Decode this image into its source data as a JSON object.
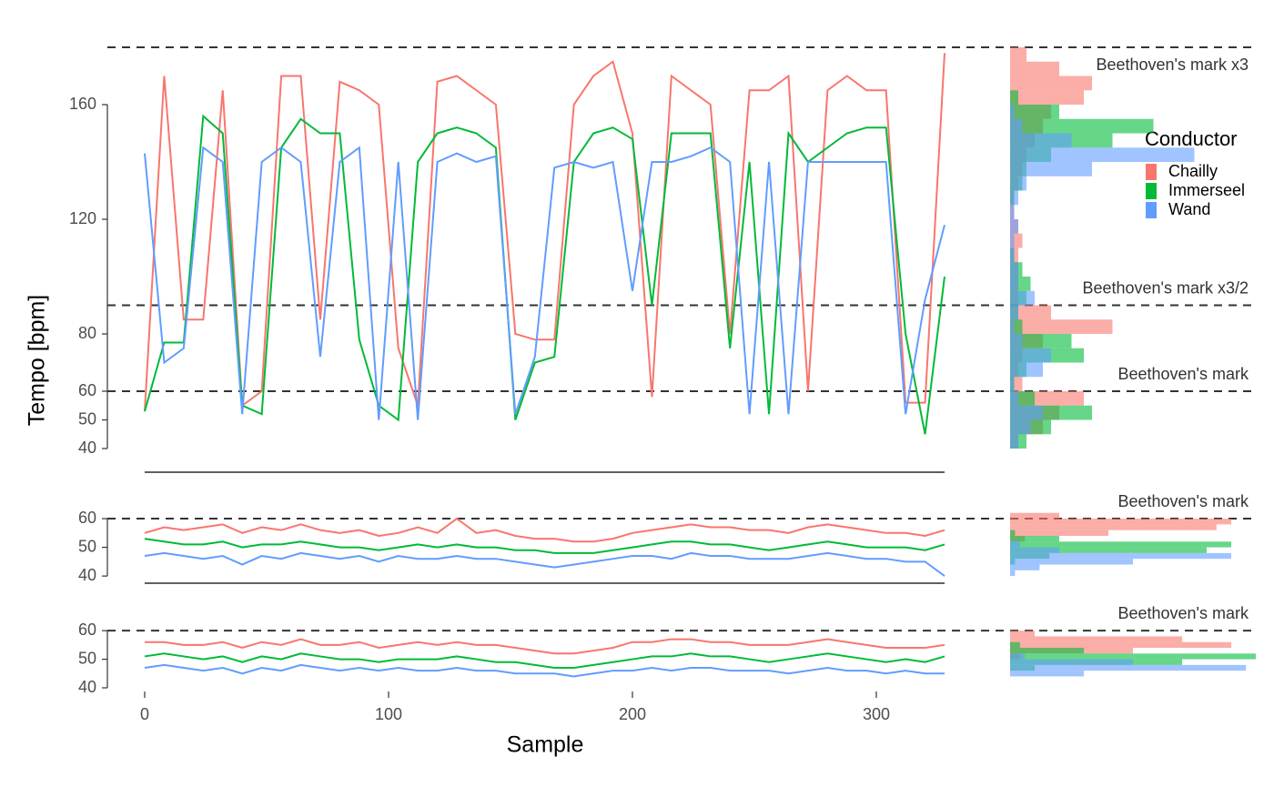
{
  "chart_data": [
    {
      "type": "line",
      "ylabel": "Tempo [bpm]",
      "legend_title": "Conductor",
      "legend": "right",
      "xlim": [
        0,
        328
      ],
      "ylim": [
        40,
        180
      ],
      "yticks": [
        40,
        50,
        60,
        80,
        120,
        160
      ],
      "ref_lines": [
        {
          "value": 180,
          "label": "Beethoven's mark x3"
        },
        {
          "value": 90,
          "label": "Beethoven's mark x3/2"
        },
        {
          "value": 60,
          "label": "Beethoven's mark"
        }
      ],
      "x": [
        0,
        8,
        16,
        24,
        32,
        40,
        48,
        56,
        64,
        72,
        80,
        88,
        96,
        104,
        112,
        120,
        128,
        136,
        144,
        152,
        160,
        168,
        176,
        184,
        192,
        200,
        208,
        216,
        224,
        232,
        240,
        248,
        256,
        264,
        272,
        280,
        288,
        296,
        304,
        312,
        320,
        328
      ],
      "series": [
        {
          "name": "Chailly",
          "color": "#F8766D",
          "values": [
            53,
            170,
            85,
            85,
            165,
            55,
            60,
            170,
            170,
            85,
            168,
            165,
            160,
            75,
            55,
            168,
            170,
            165,
            160,
            80,
            78,
            78,
            160,
            170,
            175,
            150,
            58,
            170,
            165,
            160,
            80,
            165,
            165,
            170,
            60,
            165,
            170,
            165,
            165,
            56,
            56,
            178
          ]
        },
        {
          "name": "Immerseel",
          "color": "#00BA38",
          "values": [
            53,
            77,
            77,
            156,
            150,
            55,
            52,
            145,
            155,
            150,
            150,
            78,
            55,
            50,
            140,
            150,
            152,
            150,
            145,
            50,
            70,
            72,
            140,
            150,
            152,
            148,
            90,
            150,
            150,
            150,
            75,
            140,
            52,
            150,
            140,
            145,
            150,
            152,
            152,
            80,
            45,
            100
          ]
        },
        {
          "name": "Wand",
          "color": "#619CFF",
          "values": [
            143,
            70,
            75,
            145,
            140,
            52,
            140,
            145,
            140,
            72,
            140,
            145,
            50,
            140,
            50,
            140,
            143,
            140,
            142,
            52,
            72,
            138,
            140,
            138,
            140,
            95,
            140,
            140,
            142,
            145,
            140,
            52,
            140,
            52,
            140,
            140,
            140,
            140,
            140,
            52,
            92,
            118
          ]
        }
      ]
    },
    {
      "type": "line",
      "xlim": [
        0,
        328
      ],
      "ylim": [
        37.5,
        63.5
      ],
      "yticks": [
        40,
        50,
        60
      ],
      "ref_lines": [
        {
          "value": 60,
          "label": "Beethoven's mark"
        }
      ],
      "x": [
        0,
        8,
        16,
        24,
        32,
        40,
        48,
        56,
        64,
        72,
        80,
        88,
        96,
        104,
        112,
        120,
        128,
        136,
        144,
        152,
        160,
        168,
        176,
        184,
        192,
        200,
        208,
        216,
        224,
        232,
        240,
        248,
        256,
        264,
        272,
        280,
        288,
        296,
        304,
        312,
        320,
        328
      ],
      "series": [
        {
          "name": "Chailly",
          "color": "#F8766D",
          "values": [
            55,
            57,
            56,
            57,
            58,
            55,
            57,
            56,
            58,
            56,
            55,
            56,
            54,
            55,
            57,
            55,
            60,
            55,
            56,
            54,
            53,
            53,
            52,
            52,
            53,
            55,
            56,
            57,
            58,
            57,
            57,
            56,
            56,
            55,
            57,
            58,
            57,
            56,
            55,
            55,
            54,
            56
          ]
        },
        {
          "name": "Immerseel",
          "color": "#00BA38",
          "values": [
            53,
            52,
            51,
            51,
            52,
            50,
            51,
            51,
            52,
            51,
            50,
            50,
            49,
            50,
            51,
            50,
            51,
            50,
            50,
            49,
            49,
            48,
            48,
            48,
            49,
            50,
            51,
            52,
            52,
            51,
            51,
            50,
            49,
            50,
            51,
            52,
            51,
            50,
            50,
            50,
            49,
            51
          ]
        },
        {
          "name": "Wand",
          "color": "#619CFF",
          "values": [
            47,
            48,
            47,
            46,
            47,
            44,
            47,
            46,
            48,
            47,
            46,
            47,
            45,
            47,
            46,
            46,
            47,
            46,
            46,
            45,
            44,
            43,
            44,
            45,
            46,
            47,
            47,
            46,
            48,
            47,
            47,
            46,
            46,
            46,
            47,
            48,
            47,
            46,
            46,
            45,
            45,
            40
          ]
        }
      ]
    },
    {
      "type": "line",
      "xlabel": "Sample",
      "xlim": [
        0,
        328
      ],
      "xticks": [
        0,
        100,
        200,
        300
      ],
      "ylim": [
        40,
        61
      ],
      "yticks": [
        40,
        50,
        60
      ],
      "ref_lines": [
        {
          "value": 60,
          "label": "Beethoven's mark"
        }
      ],
      "x": [
        0,
        8,
        16,
        24,
        32,
        40,
        48,
        56,
        64,
        72,
        80,
        88,
        96,
        104,
        112,
        120,
        128,
        136,
        144,
        152,
        160,
        168,
        176,
        184,
        192,
        200,
        208,
        216,
        224,
        232,
        240,
        248,
        256,
        264,
        272,
        280,
        288,
        296,
        304,
        312,
        320,
        328
      ],
      "series": [
        {
          "name": "Chailly",
          "color": "#F8766D",
          "values": [
            56,
            56,
            55,
            55,
            56,
            54,
            56,
            55,
            57,
            55,
            55,
            56,
            54,
            55,
            56,
            55,
            56,
            55,
            55,
            54,
            53,
            52,
            52,
            53,
            54,
            56,
            56,
            57,
            57,
            56,
            56,
            55,
            55,
            55,
            56,
            57,
            56,
            55,
            54,
            54,
            54,
            55
          ]
        },
        {
          "name": "Immerseel",
          "color": "#00BA38",
          "values": [
            51,
            52,
            51,
            50,
            51,
            49,
            51,
            50,
            52,
            51,
            50,
            50,
            49,
            50,
            50,
            50,
            51,
            50,
            49,
            49,
            48,
            47,
            47,
            48,
            49,
            50,
            51,
            51,
            52,
            51,
            51,
            50,
            49,
            50,
            51,
            52,
            51,
            50,
            49,
            50,
            49,
            51
          ]
        },
        {
          "name": "Wand",
          "color": "#619CFF",
          "values": [
            47,
            48,
            47,
            46,
            47,
            45,
            47,
            46,
            48,
            47,
            46,
            47,
            46,
            47,
            46,
            46,
            47,
            46,
            46,
            45,
            45,
            45,
            44,
            45,
            46,
            46,
            47,
            46,
            47,
            47,
            46,
            46,
            46,
            45,
            46,
            47,
            46,
            46,
            45,
            46,
            45,
            45
          ]
        }
      ]
    },
    {
      "type": "histogram",
      "xlim": [
        0,
        60
      ],
      "bins": [
        40,
        45,
        50,
        55,
        60,
        65,
        70,
        75,
        80,
        85,
        90,
        95,
        100,
        105,
        110,
        115,
        120,
        125,
        130,
        135,
        140,
        145,
        150,
        155,
        160,
        165,
        170,
        175,
        180
      ],
      "series": [
        {
          "name": "Chailly",
          "color": "#F8766D",
          "values": [
            2,
            8,
            12,
            18,
            3,
            2,
            3,
            8,
            25,
            10,
            2,
            2,
            2,
            2,
            3,
            2,
            1,
            1,
            2,
            3,
            4,
            6,
            8,
            10,
            18,
            20,
            12,
            4
          ]
        },
        {
          "name": "Immerseel",
          "color": "#00BA38",
          "values": [
            4,
            10,
            20,
            6,
            1,
            4,
            18,
            15,
            3,
            2,
            4,
            5,
            3,
            1,
            0,
            0,
            0,
            1,
            3,
            4,
            10,
            25,
            35,
            12,
            2,
            0,
            0,
            0
          ]
        },
        {
          "name": "Wand",
          "color": "#619CFF",
          "values": [
            2,
            5,
            8,
            2,
            1,
            8,
            10,
            3,
            1,
            2,
            6,
            2,
            2,
            1,
            1,
            2,
            1,
            2,
            4,
            20,
            45,
            15,
            3,
            1,
            0,
            0,
            0,
            0
          ]
        }
      ]
    },
    {
      "type": "histogram",
      "xlim": [
        0,
        50
      ],
      "bins": [
        40,
        42,
        44,
        46,
        48,
        50,
        52,
        54,
        56,
        58,
        60,
        62
      ],
      "series": [
        {
          "name": "Chailly",
          "color": "#F8766D",
          "values": [
            0,
            0,
            0,
            0,
            0,
            0,
            3,
            20,
            42,
            45,
            10
          ]
        },
        {
          "name": "Immerseel",
          "color": "#00BA38",
          "values": [
            0,
            0,
            1,
            8,
            40,
            45,
            10,
            1,
            0,
            0,
            0
          ]
        },
        {
          "name": "Wand",
          "color": "#619CFF",
          "values": [
            1,
            6,
            25,
            45,
            10,
            2,
            0,
            0,
            0,
            0,
            0
          ]
        }
      ]
    },
    {
      "type": "histogram",
      "xlim": [
        0,
        50
      ],
      "bins": [
        40,
        42,
        44,
        46,
        48,
        50,
        52,
        54,
        56,
        58,
        60,
        62
      ],
      "series": [
        {
          "name": "Chailly",
          "color": "#F8766D",
          "values": [
            0,
            0,
            0,
            0,
            0,
            2,
            25,
            45,
            35,
            5,
            0
          ]
        },
        {
          "name": "Immerseel",
          "color": "#00BA38",
          "values": [
            0,
            0,
            0,
            5,
            35,
            50,
            15,
            2,
            0,
            0,
            0
          ]
        },
        {
          "name": "Wand",
          "color": "#619CFF",
          "values": [
            0,
            0,
            15,
            48,
            25,
            3,
            0,
            0,
            0,
            0,
            0
          ]
        }
      ]
    }
  ]
}
